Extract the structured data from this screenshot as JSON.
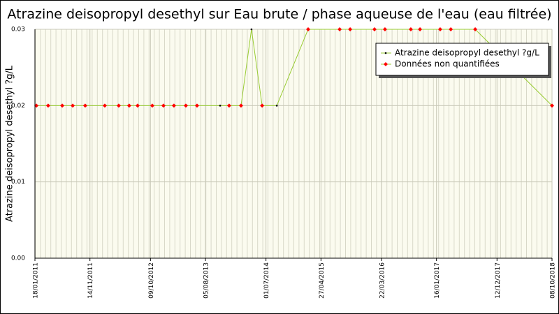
{
  "chart_data": {
    "type": "line",
    "title": "Atrazine deisopropyl desethyl sur Eau brute / phase aqueuse de l'eau (eau filtrée)",
    "y_label": "Atrazine deisopropyl desethyl ?g/L",
    "ylim": [
      0,
      0.03
    ],
    "yticks": [
      {
        "value": 0,
        "label": "0.00"
      },
      {
        "value": 0.01,
        "label": "0.01"
      },
      {
        "value": 0.02,
        "label": "0.02"
      },
      {
        "value": 0.03,
        "label": "0.03"
      }
    ],
    "xlim": [
      "18/01/2011",
      "08/10/2018"
    ],
    "xticks": [
      "18/01/2011",
      "14/11/2011",
      "09/10/2012",
      "05/08/2013",
      "01/07/2014",
      "27/04/2015",
      "22/03/2016",
      "16/01/2017",
      "12/12/2017",
      "08/10/2018"
    ],
    "grid": true,
    "legend": "top-right",
    "line_color": "#99cc33",
    "series": [
      {
        "name": "Atrazine deisopropyl desethyl ?g/L",
        "color": "#000000",
        "x": [
          "26/01/2011",
          "31/03/2011",
          "16/06/2011",
          "12/08/2011",
          "19/10/2011",
          "03/02/2012",
          "19/04/2012",
          "15/06/2012",
          "31/07/2012",
          "19/10/2012",
          "19/12/2012",
          "14/02/2013",
          "20/04/2013",
          "20/06/2013",
          "24/10/2013",
          "12/12/2013",
          "15/02/2014",
          "13/04/2014",
          "10/06/2014",
          "29/08/2014",
          "16/02/2015",
          "07/08/2015",
          "03/10/2015",
          "13/02/2016",
          "10/04/2016",
          "29/08/2016",
          "18/10/2016",
          "05/02/2017",
          "04/04/2017",
          "15/08/2017",
          "08/10/2018"
        ],
        "values": [
          0.02,
          0.02,
          0.02,
          0.02,
          0.02,
          0.02,
          0.02,
          0.02,
          0.02,
          0.02,
          0.02,
          0.02,
          0.02,
          0.02,
          0.02,
          0.02,
          0.02,
          0.03,
          0.02,
          0.02,
          0.03,
          0.03,
          0.03,
          0.03,
          0.03,
          0.03,
          0.03,
          0.03,
          0.03,
          0.03,
          0.02
        ],
        "quantified": [
          false,
          false,
          false,
          false,
          false,
          false,
          false,
          false,
          false,
          false,
          false,
          false,
          false,
          false,
          true,
          false,
          false,
          true,
          false,
          true,
          false,
          false,
          false,
          false,
          false,
          false,
          false,
          false,
          false,
          false,
          false
        ]
      }
    ],
    "non_quantified": {
      "name": "Données non quantifiées",
      "color": "#ff0000"
    }
  }
}
